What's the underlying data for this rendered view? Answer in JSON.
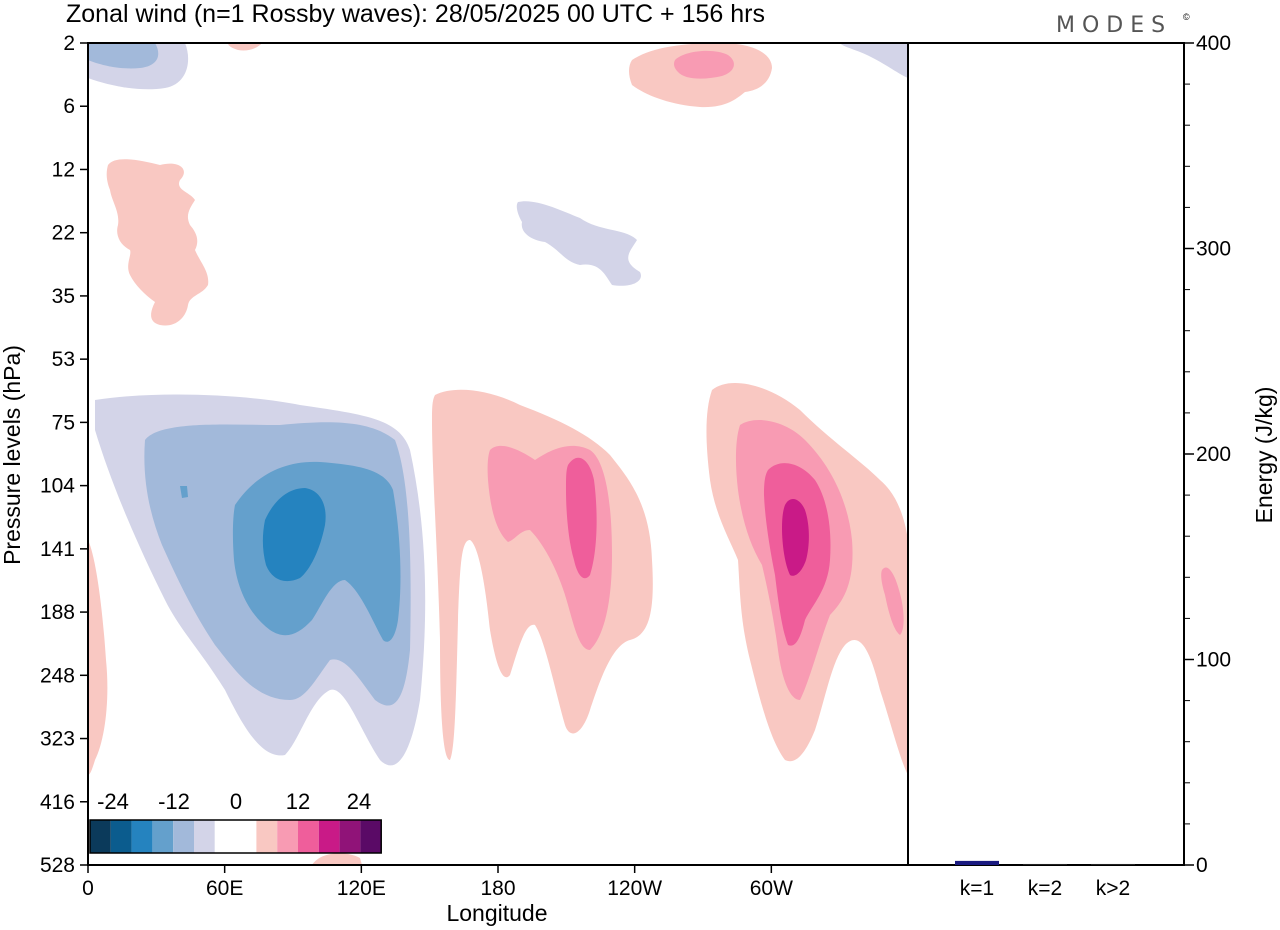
{
  "title": "Zonal wind (n=1 Rossby waves):  28/05/2025  00 UTC  + 156 hrs",
  "logo": "MODES",
  "logo_mark": "©",
  "chart_data": [
    {
      "type": "heatmap",
      "title": "Zonal wind (n=1 Rossby waves):  28/05/2025  00 UTC  + 156 hrs",
      "xlabel": "Longitude",
      "ylabel": "Pressure levels (hPa)",
      "x_ticks": [
        "0",
        "60E",
        "120E",
        "180",
        "120W",
        "60W"
      ],
      "x_range_deg": [
        0,
        360
      ],
      "y_ticks": [
        "2",
        "6",
        "12",
        "22",
        "35",
        "53",
        "75",
        "104",
        "141",
        "188",
        "248",
        "323",
        "416",
        "528"
      ],
      "y_range_hPa": [
        2,
        528
      ],
      "colorbar": {
        "tick_labels": [
          "-24",
          "-12",
          "0",
          "12",
          "24"
        ],
        "colors": [
          "#0b3a5b",
          "#0b5c8e",
          "#2583bf",
          "#64a0cc",
          "#a2b9da",
          "#d3d4e8",
          "#ffffff",
          "#ffffff",
          "#f9c8c2",
          "#f89bb3",
          "#ef5e9b",
          "#c91a87",
          "#901378",
          "#5a0a66"
        ]
      },
      "features": [
        {
          "name": "negative anomaly centred near 90E, 141 hPa",
          "peak": -18
        },
        {
          "name": "positive anomaly centred near 150W, 120 hPa",
          "peak": 15
        },
        {
          "name": "positive anomaly centred near 70W, 130 hPa",
          "peak": 18
        }
      ]
    },
    {
      "type": "bar",
      "categories": [
        "k=1",
        "k=2",
        "k>2"
      ],
      "values": [
        2,
        0.5,
        0.5
      ],
      "ylabel": "Energy (J/kg)",
      "ylim": [
        0,
        400
      ],
      "y_ticks": [
        "0",
        "100",
        "200",
        "300",
        "400"
      ],
      "bar_color": "#1a1a80"
    }
  ]
}
